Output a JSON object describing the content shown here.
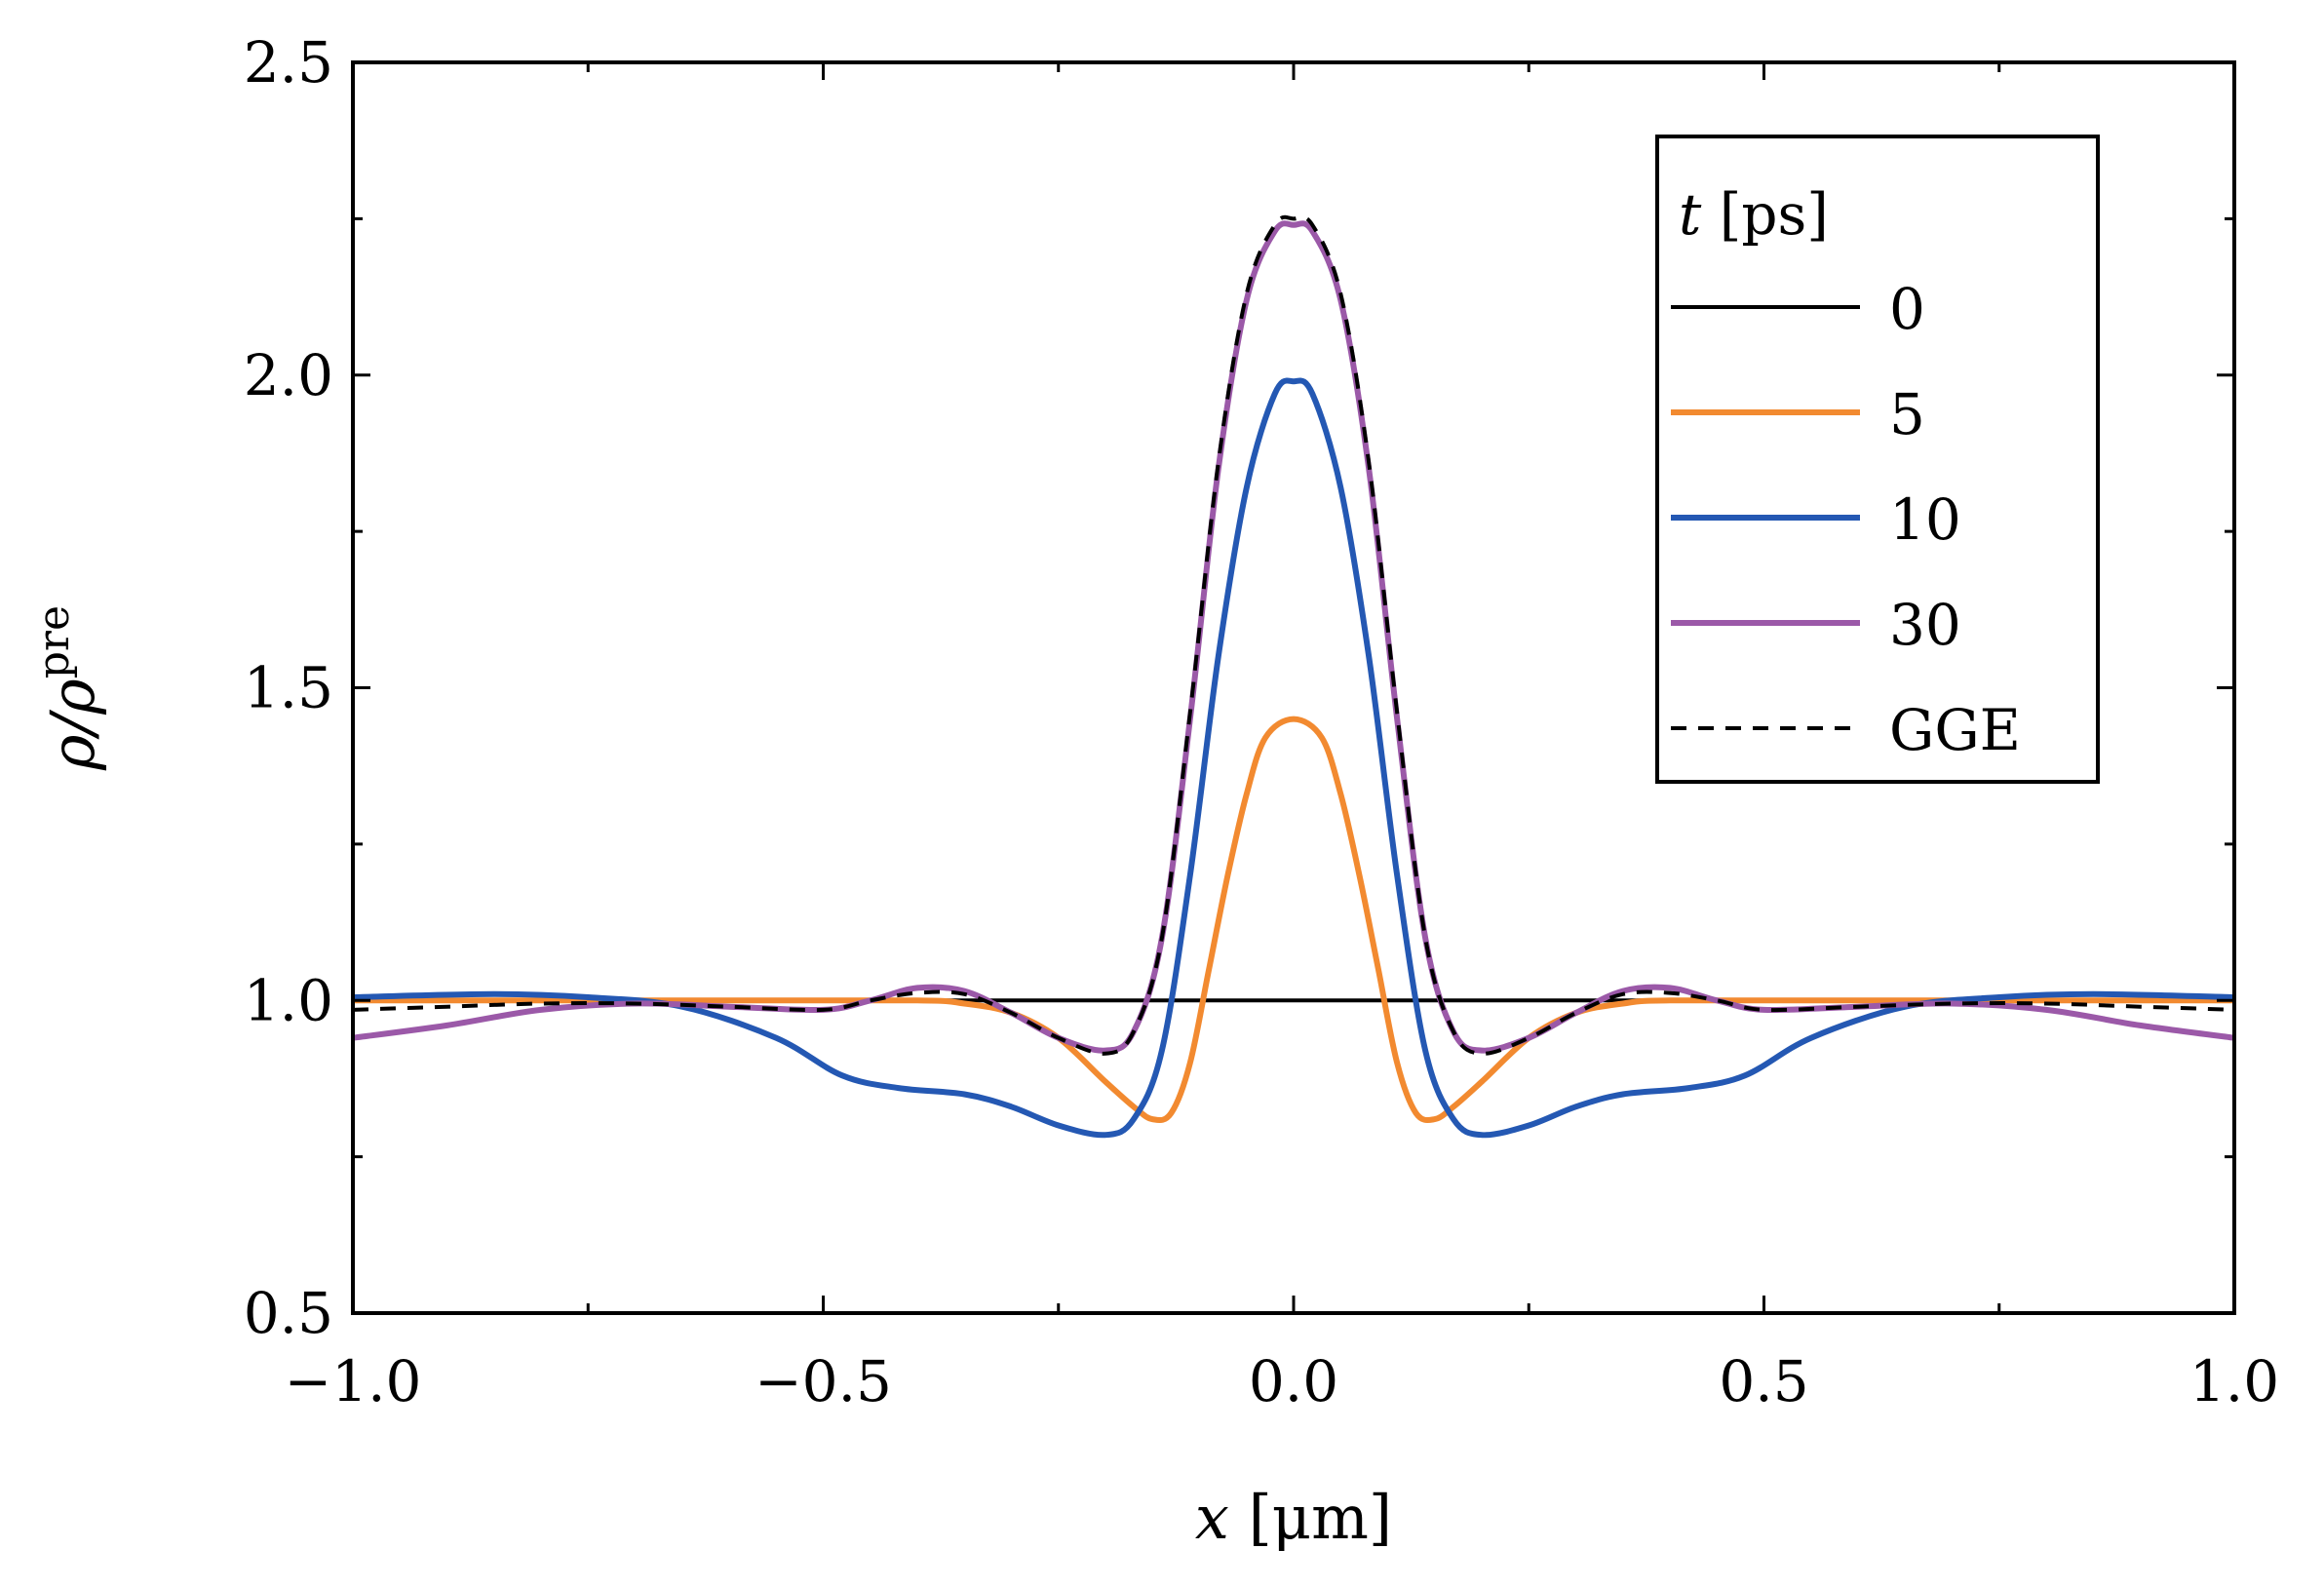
{
  "chart_data": {
    "type": "line",
    "title": "",
    "xlabel": "x [μm]",
    "xlabel_parts": {
      "var": "x",
      "unit": " [μm]"
    },
    "ylabel": "ρ/ρ^pre",
    "ylabel_parts": {
      "main": "ρ/ρ",
      "sup": "pre"
    },
    "xlim": [
      -1.0,
      1.0
    ],
    "ylim": [
      0.5,
      2.5
    ],
    "xticks": [
      -1.0,
      -0.5,
      0.0,
      0.5,
      1.0
    ],
    "xtick_labels": [
      "−1.0",
      "−0.5",
      "0.0",
      "0.5",
      "1.0"
    ],
    "xminor": [
      -0.75,
      -0.25,
      0.25,
      0.75
    ],
    "yticks": [
      0.5,
      1.0,
      1.5,
      2.0,
      2.5
    ],
    "ytick_labels": [
      "0.5",
      "1.0",
      "1.5",
      "2.0",
      "2.5"
    ],
    "yminor": [
      0.75,
      1.25,
      1.75,
      2.25
    ],
    "grid": false,
    "legend": {
      "position": "top-right",
      "title_var": "t",
      "title_unit": " [ps]",
      "title": "t [ps]"
    },
    "series": [
      {
        "name": "0",
        "color": "#000000",
        "dash": "solid",
        "x": [
          -1.0,
          1.0
        ],
        "y": [
          1.0,
          1.0
        ]
      },
      {
        "name": "5",
        "color": "#f28a30",
        "dash": "solid",
        "x": [
          -1.0,
          -0.6,
          -0.4,
          -0.35,
          -0.3,
          -0.25,
          -0.2,
          -0.17,
          -0.15,
          -0.13,
          -0.11,
          -0.09,
          -0.07,
          -0.05,
          -0.03,
          0.0,
          0.03,
          0.05,
          0.07,
          0.09,
          0.11,
          0.13,
          0.15,
          0.17,
          0.2,
          0.25,
          0.3,
          0.35,
          0.4,
          0.6,
          1.0
        ],
        "y": [
          1.0,
          1.0,
          1.0,
          0.995,
          0.98,
          0.94,
          0.87,
          0.83,
          0.81,
          0.82,
          0.9,
          1.05,
          1.2,
          1.33,
          1.42,
          1.45,
          1.42,
          1.33,
          1.2,
          1.05,
          0.9,
          0.82,
          0.81,
          0.83,
          0.87,
          0.94,
          0.98,
          0.995,
          1.0,
          1.0,
          1.0
        ]
      },
      {
        "name": "10",
        "color": "#2458b3",
        "dash": "solid",
        "x": [
          -1.0,
          -0.85,
          -0.75,
          -0.65,
          -0.55,
          -0.48,
          -0.42,
          -0.35,
          -0.3,
          -0.25,
          -0.2,
          -0.17,
          -0.14,
          -0.11,
          -0.08,
          -0.05,
          -0.02,
          0.0,
          0.02,
          0.05,
          0.08,
          0.11,
          0.14,
          0.17,
          0.2,
          0.25,
          0.3,
          0.35,
          0.42,
          0.48,
          0.55,
          0.65,
          0.75,
          0.85,
          1.0
        ],
        "y": [
          1.005,
          1.01,
          1.005,
          0.99,
          0.94,
          0.88,
          0.86,
          0.85,
          0.83,
          0.8,
          0.785,
          0.81,
          0.92,
          1.2,
          1.55,
          1.82,
          1.97,
          1.99,
          1.97,
          1.82,
          1.55,
          1.2,
          0.92,
          0.81,
          0.785,
          0.8,
          0.83,
          0.85,
          0.86,
          0.88,
          0.94,
          0.99,
          1.005,
          1.01,
          1.005
        ]
      },
      {
        "name": "30",
        "color": "#9b59a8",
        "dash": "solid",
        "x": [
          -1.0,
          -0.9,
          -0.8,
          -0.7,
          -0.6,
          -0.5,
          -0.45,
          -0.4,
          -0.35,
          -0.3,
          -0.25,
          -0.2,
          -0.17,
          -0.14,
          -0.11,
          -0.08,
          -0.05,
          -0.02,
          0.0,
          0.02,
          0.05,
          0.08,
          0.11,
          0.14,
          0.17,
          0.2,
          0.25,
          0.3,
          0.35,
          0.4,
          0.45,
          0.5,
          0.6,
          0.7,
          0.8,
          0.9,
          1.0
        ],
        "y": [
          0.94,
          0.96,
          0.985,
          0.995,
          0.99,
          0.985,
          1.0,
          1.02,
          1.015,
          0.98,
          0.94,
          0.92,
          0.95,
          1.1,
          1.45,
          1.85,
          2.12,
          2.23,
          2.24,
          2.23,
          2.12,
          1.85,
          1.45,
          1.1,
          0.95,
          0.92,
          0.94,
          0.98,
          1.015,
          1.02,
          1.0,
          0.985,
          0.99,
          0.995,
          0.985,
          0.96,
          0.94
        ]
      },
      {
        "name": "GGE",
        "color": "#000000",
        "dash": "dashed",
        "x": [
          -1.0,
          -0.9,
          -0.8,
          -0.7,
          -0.6,
          -0.5,
          -0.45,
          -0.4,
          -0.35,
          -0.3,
          -0.25,
          -0.2,
          -0.17,
          -0.14,
          -0.11,
          -0.08,
          -0.05,
          -0.02,
          0.0,
          0.02,
          0.05,
          0.08,
          0.11,
          0.14,
          0.17,
          0.2,
          0.25,
          0.3,
          0.35,
          0.4,
          0.45,
          0.5,
          0.6,
          0.7,
          0.8,
          0.9,
          1.0
        ],
        "y": [
          0.985,
          0.99,
          0.995,
          0.995,
          0.99,
          0.985,
          1.0,
          1.012,
          1.01,
          0.98,
          0.94,
          0.915,
          0.95,
          1.1,
          1.46,
          1.86,
          2.13,
          2.24,
          2.25,
          2.24,
          2.13,
          1.86,
          1.46,
          1.1,
          0.95,
          0.915,
          0.94,
          0.98,
          1.01,
          1.012,
          1.0,
          0.985,
          0.99,
          0.995,
          0.995,
          0.99,
          0.985
        ]
      }
    ]
  }
}
